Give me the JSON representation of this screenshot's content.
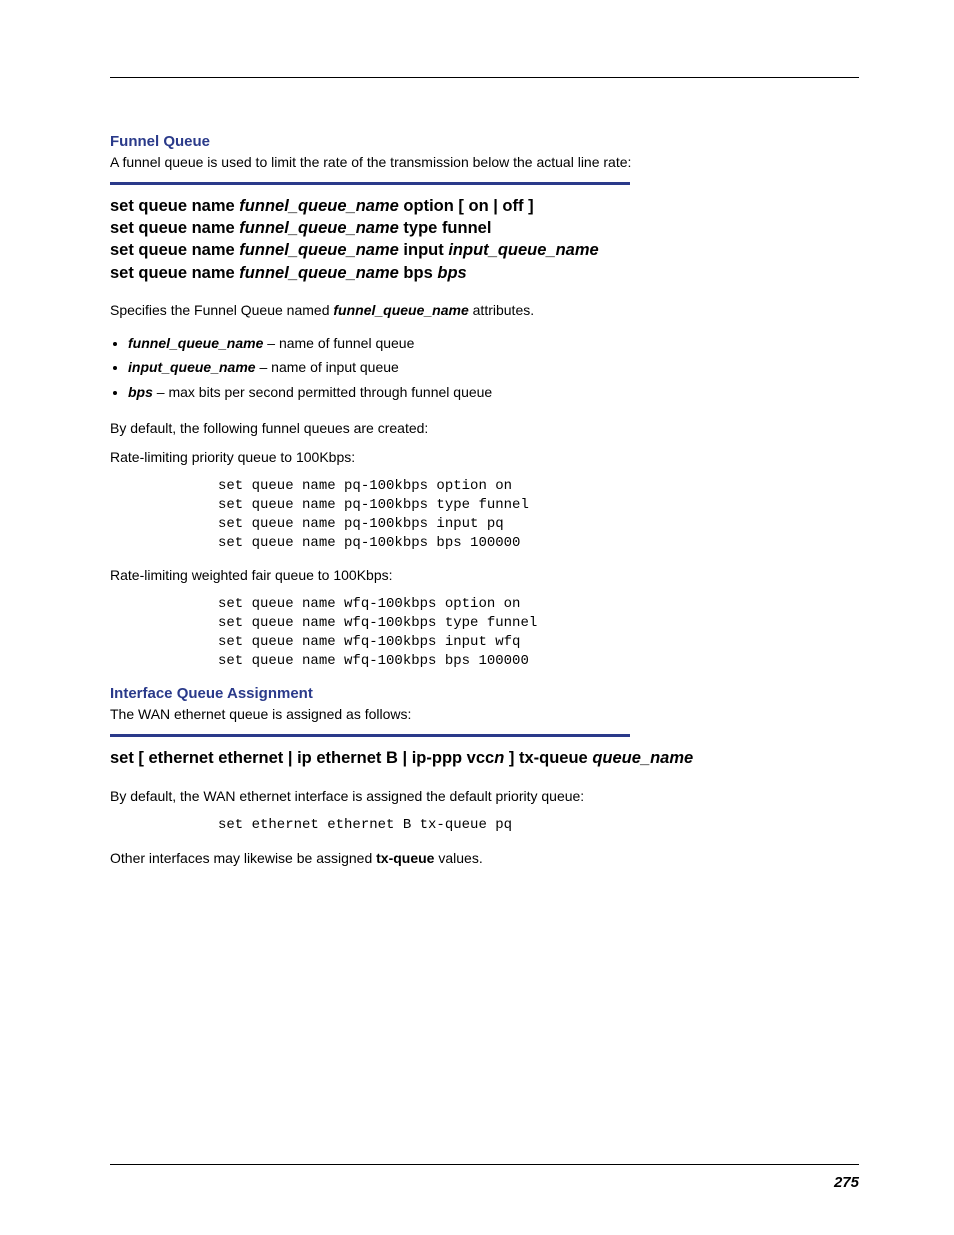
{
  "colors": {
    "heading_color": "#2a3a8a",
    "rule_color": "#2a3a8a",
    "text_color": "#000000",
    "background": "#ffffff"
  },
  "section1": {
    "heading": "Funnel Queue",
    "intro": "A funnel queue is used to limit the rate of the transmission below the actual line rate:",
    "cmd1_a": "set queue name ",
    "cmd1_b": "funnel_queue_name",
    "cmd1_c": " option [ on | off ]",
    "cmd2_a": "set queue name ",
    "cmd2_b": "funnel_queue_name",
    "cmd2_c": " type funnel",
    "cmd3_a": "set queue name ",
    "cmd3_b": "funnel_queue_name",
    "cmd3_c": " input ",
    "cmd3_d": "input_queue_name",
    "cmd4_a": "set queue name ",
    "cmd4_b": "funnel_queue_name",
    "cmd4_c": " bps ",
    "cmd4_d": "bps",
    "desc_a": "Specifies the Funnel Queue named ",
    "desc_b": "funnel_queue_name",
    "desc_c": " attributes.",
    "param1_a": "funnel_queue_name",
    "param1_b": " – name of funnel queue",
    "param2_a": "input_queue_name",
    "param2_b": " – name of input queue",
    "param3_a": "bps",
    "param3_b": " – max bits per second permitted through funnel queue",
    "defaults_intro": "By default, the following funnel queues are created:",
    "rate1_label": "Rate-limiting priority queue to 100Kbps:",
    "code1": "set queue name pq-100kbps option on\nset queue name pq-100kbps type funnel\nset queue name pq-100kbps input pq\nset queue name pq-100kbps bps 100000",
    "rate2_label": "Rate-limiting weighted fair queue to 100Kbps:",
    "code2": "set queue name wfq-100kbps option on\nset queue name wfq-100kbps type funnel\nset queue name wfq-100kbps input wfq\nset queue name wfq-100kbps bps 100000"
  },
  "section2": {
    "heading": "Interface Queue Assignment",
    "intro": "The WAN ethernet queue is assigned as follows:",
    "cmd_a": "set [ ethernet ethernet | ip ethernet B | ip-ppp vcc",
    "cmd_b": "n",
    "cmd_c": " ] tx-queue ",
    "cmd_d": "queue_name",
    "desc1": "By default, the WAN ethernet interface is assigned the default priority queue:",
    "code1": "set ethernet ethernet B tx-queue pq",
    "desc2_a": "Other interfaces may likewise be assigned ",
    "desc2_b": "tx-queue",
    "desc2_c": " values."
  },
  "page_number": "275"
}
